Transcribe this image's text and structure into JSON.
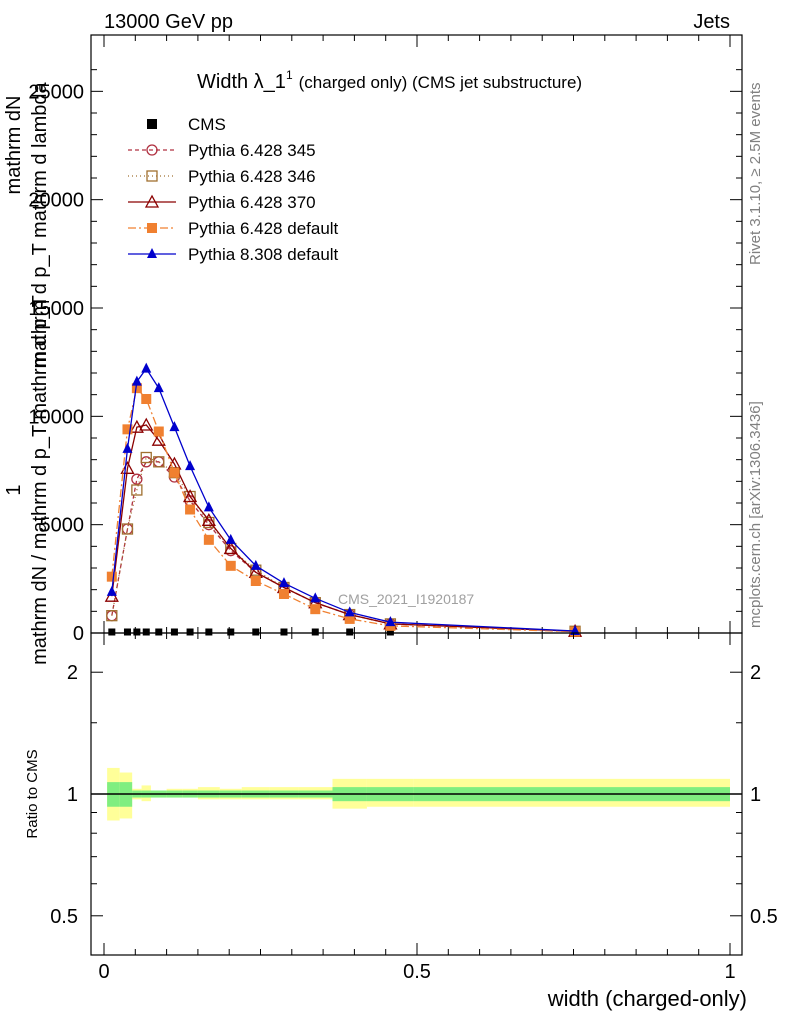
{
  "header": {
    "left": "13000 GeV pp",
    "right": "Jets",
    "side_top": "Rivet 3.1.10, ≥ 2.5M events",
    "side_bottom": "mcplots.cern.ch [arXiv:1306.3436]",
    "watermark": "CMS_2021_I1920187"
  },
  "main_plot": {
    "title_main": "Width λ_1",
    "title_sup": "1",
    "title_rest": "(charged only) (CMS jet substructure)",
    "ylabel_numerator": "1",
    "ylabel_upper": "mathrm dN",
    "ylabel_upper2": "mathrm d p_T mathrm d lambda",
    "ylabel_denominator": "mathrm dN / mathrm d p_T mathrm d p_T",
    "yticks": [
      "0",
      "5000",
      "10000",
      "15000",
      "20000",
      "25000"
    ]
  },
  "ratio_plot": {
    "ylabel": "Ratio to CMS",
    "yticks": [
      "0.5",
      "1",
      "2"
    ],
    "xticks": [
      "0",
      "0.5",
      "1"
    ],
    "xlabel": "width (charged-only)"
  },
  "chart_data": {
    "type": "line",
    "title": "Width λ_1^1 (charged only) (CMS jet substructure)",
    "xlabel": "width (charged-only)",
    "ylim": [
      0,
      27500
    ],
    "xlim": [
      -0.02,
      1.02
    ],
    "ratio_ylim": [
      0.4,
      2.5
    ],
    "ratio_yscale": "log",
    "legend_position": "top-left",
    "x": [
      0.0125,
      0.0375,
      0.0525,
      0.0675,
      0.0875,
      0.1125,
      0.1375,
      0.1675,
      0.2025,
      0.2425,
      0.2875,
      0.3375,
      0.3925,
      0.4575,
      0.7525
    ],
    "bin_edges": [
      0.005,
      0.025,
      0.045,
      0.06,
      0.075,
      0.1,
      0.125,
      0.15,
      0.185,
      0.22,
      0.265,
      0.31,
      0.365,
      0.42,
      0.495,
      1.0
    ],
    "series": [
      {
        "name": "CMS",
        "color": "#000000",
        "marker": "square-filled",
        "values": [
          0,
          0,
          0,
          0,
          0,
          0,
          0,
          0,
          0,
          0,
          0,
          0,
          0,
          0,
          0
        ]
      },
      {
        "name": "Pythia 6.428 345",
        "color": "#b03040",
        "marker": "circle-open",
        "dash": "4,3",
        "values": [
          800,
          4800,
          7100,
          7900,
          7900,
          7200,
          6100,
          5000,
          3800,
          2800,
          2100,
          1400,
          850,
          420,
          80
        ]
      },
      {
        "name": "Pythia 6.428 346",
        "color": "#a07030",
        "marker": "square-open",
        "dash": "1,3",
        "values": [
          800,
          4800,
          6600,
          8100,
          7900,
          7400,
          6300,
          5100,
          3900,
          2900,
          2100,
          1400,
          850,
          420,
          80
        ]
      },
      {
        "name": "Pythia 6.428 370",
        "color": "#8b0000",
        "marker": "triangle-open",
        "dash": "",
        "values": [
          1700,
          7600,
          9500,
          9600,
          8900,
          7800,
          6300,
          5200,
          3900,
          2800,
          2100,
          1400,
          850,
          420,
          80
        ]
      },
      {
        "name": "Pythia 6.428 default",
        "color": "#f08030",
        "marker": "square-filled",
        "dash": "8,3,2,3",
        "values": [
          2600,
          9400,
          11300,
          10800,
          9300,
          7400,
          5700,
          4300,
          3100,
          2400,
          1800,
          1100,
          650,
          330,
          60
        ]
      },
      {
        "name": "Pythia 8.308 default",
        "color": "#0000cc",
        "marker": "triangle-filled",
        "dash": "",
        "values": [
          1900,
          8500,
          11600,
          12200,
          11300,
          9500,
          7700,
          5800,
          4300,
          3100,
          2300,
          1600,
          950,
          500,
          90
        ]
      }
    ],
    "ratio_bands": {
      "inner": [
        1.07,
        1.07,
        1.02,
        1.02,
        1.02,
        1.02,
        1.02,
        1.02,
        1.02,
        1.02,
        1.02,
        1.02,
        1.04,
        1.04,
        1.04
      ],
      "inner_low": [
        0.93,
        0.93,
        0.98,
        0.98,
        0.98,
        0.98,
        0.98,
        0.98,
        0.98,
        0.98,
        0.98,
        0.98,
        0.96,
        0.96,
        0.96
      ],
      "outer": [
        1.16,
        1.13,
        1.03,
        1.05,
        1.02,
        1.03,
        1.03,
        1.04,
        1.03,
        1.04,
        1.04,
        1.04,
        1.09,
        1.09,
        1.09
      ],
      "outer_low": [
        0.86,
        0.87,
        0.97,
        0.96,
        0.98,
        0.98,
        0.98,
        0.97,
        0.97,
        0.97,
        0.97,
        0.97,
        0.92,
        0.93,
        0.93
      ]
    },
    "band_colors": {
      "inner": "#80ee80",
      "outer": "#ffff99"
    }
  }
}
